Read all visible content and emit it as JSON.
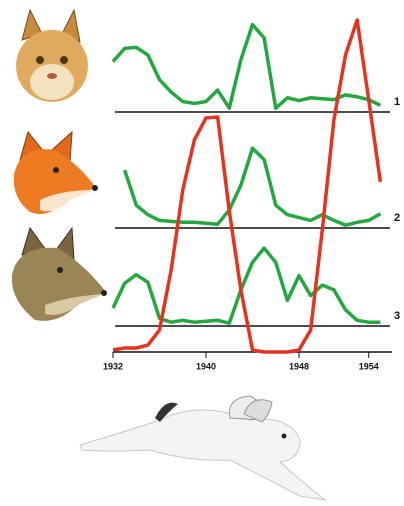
{
  "chart_data": {
    "type": "line",
    "x": [
      1932,
      1933,
      1934,
      1935,
      1936,
      1937,
      1938,
      1939,
      1940,
      1941,
      1942,
      1943,
      1944,
      1945,
      1946,
      1947,
      1948,
      1949,
      1950,
      1951,
      1952,
      1953,
      1954,
      1955
    ],
    "xlim": [
      1932,
      1956
    ],
    "xticks": [
      1932,
      1940,
      1948,
      1954
    ],
    "ylim": [
      0,
      10
    ],
    "y2lim": [
      0,
      100
    ],
    "series": [
      {
        "name": "1",
        "color": "#22a83f",
        "values": [
          5.3,
          6.7,
          6.8,
          6.0,
          3.4,
          2.1,
          1.1,
          0.9,
          1.1,
          2.3,
          0.4,
          5.5,
          9.2,
          7.8,
          0.4,
          1.5,
          1.2,
          1.5,
          1.4,
          1.3,
          1.8,
          1.6,
          1.3,
          0.7
        ]
      },
      {
        "name": "2",
        "color": "#22a83f",
        "values": [
          null,
          6.1,
          2.4,
          1.4,
          0.8,
          0.7,
          0.6,
          0.6,
          0.5,
          0.4,
          1.9,
          4.5,
          8.4,
          7.2,
          2.4,
          1.4,
          1.1,
          0.8,
          1.4,
          0.8,
          0.3,
          0.6,
          0.8,
          1.5
        ]
      },
      {
        "name": "3",
        "color": "#22a83f",
        "values": [
          1.9,
          4.5,
          5.4,
          4.6,
          0.8,
          0.4,
          0.6,
          0.4,
          0.5,
          0.6,
          0.3,
          3.8,
          6.7,
          8.2,
          6.7,
          2.7,
          5.3,
          3.2,
          4.3,
          3.8,
          1.7,
          0.6,
          0.4,
          0.4
        ]
      },
      {
        "color": "#e8321e",
        "axis": "y2",
        "values": [
          0.6,
          1.2,
          1.2,
          2.1,
          6.6,
          24.7,
          48.8,
          63.9,
          70.5,
          70.8,
          42.5,
          18.7,
          0.6,
          0,
          0,
          0,
          0.6,
          6.6,
          36.7,
          69.9,
          89.5,
          100,
          75.9,
          51.2
        ]
      }
    ]
  }
}
